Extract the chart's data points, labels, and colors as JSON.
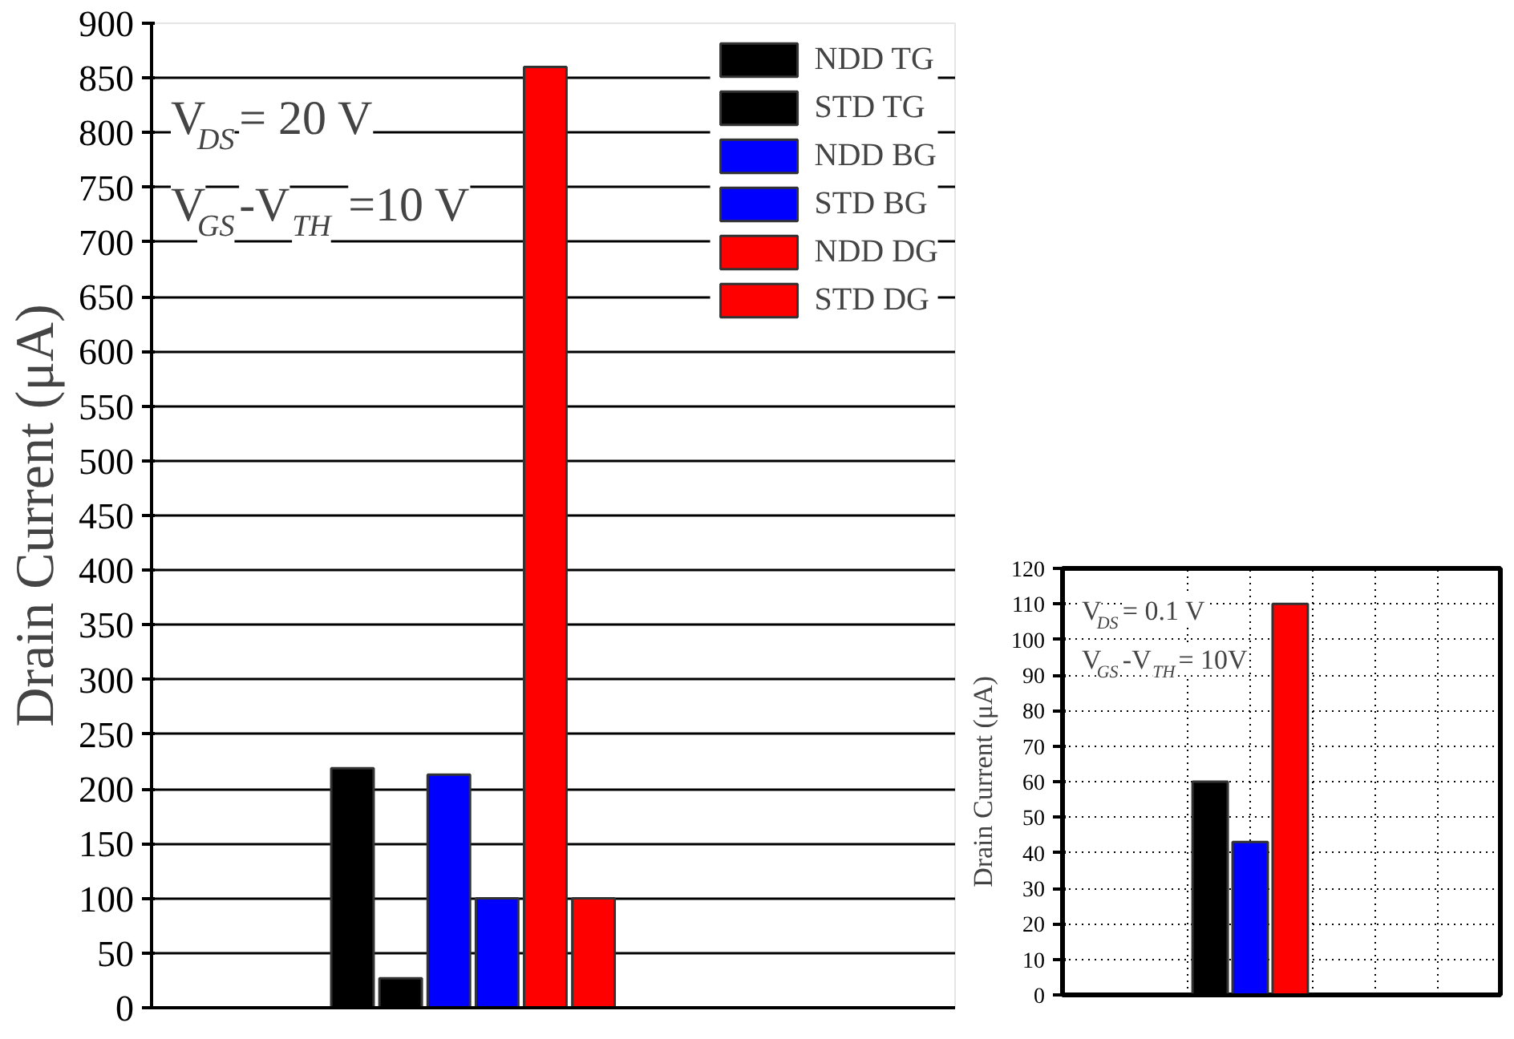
{
  "chart_data": [
    {
      "type": "bar",
      "ylabel": "Drain Current (μA)",
      "categories": [
        null
      ],
      "series": [
        {
          "name": "NDD TG",
          "color": "#000000",
          "values": [
            219
          ]
        },
        {
          "name": "STD TG",
          "color": "#000000",
          "values": [
            27
          ]
        },
        {
          "name": "NDD BG",
          "color": "#0000ff",
          "values": [
            213
          ]
        },
        {
          "name": "STD BG",
          "color": "#0000ff",
          "values": [
            100
          ]
        },
        {
          "name": "NDD DG",
          "color": "#ff0000",
          "values": [
            860
          ]
        },
        {
          "name": "STD DG",
          "color": "#ff0000",
          "values": [
            100
          ]
        }
      ],
      "ylim": [
        0,
        900
      ],
      "yticks": [
        0,
        50,
        100,
        150,
        200,
        250,
        300,
        350,
        400,
        450,
        500,
        550,
        600,
        650,
        700,
        750,
        800,
        850,
        900
      ],
      "grid": "y",
      "legend": "top right",
      "tick_labels": "y",
      "annotations": [
        "V$_{DS}$= 20 V",
        "V$_{GS}$-V$_{TH}$ =10 V"
      ]
    },
    {
      "type": "bar",
      "ylabel": "Drain Current (μA)",
      "categories": [
        null
      ],
      "series": [
        {
          "color": "#000000",
          "values": [
            60
          ]
        },
        {
          "color": "#0000ff",
          "values": [
            43
          ]
        },
        {
          "color": "#ff0000",
          "values": [
            110
          ]
        }
      ],
      "ylim": [
        0,
        120
      ],
      "yticks": [
        0,
        10,
        20,
        30,
        40,
        50,
        60,
        70,
        80,
        90,
        100,
        110,
        120
      ],
      "grid": true,
      "tick_labels": "y",
      "annotations": [
        "V$_{DS}$= 0.1 V",
        "V$_{GS}$-V$_{TH}$= 10V"
      ]
    }
  ]
}
